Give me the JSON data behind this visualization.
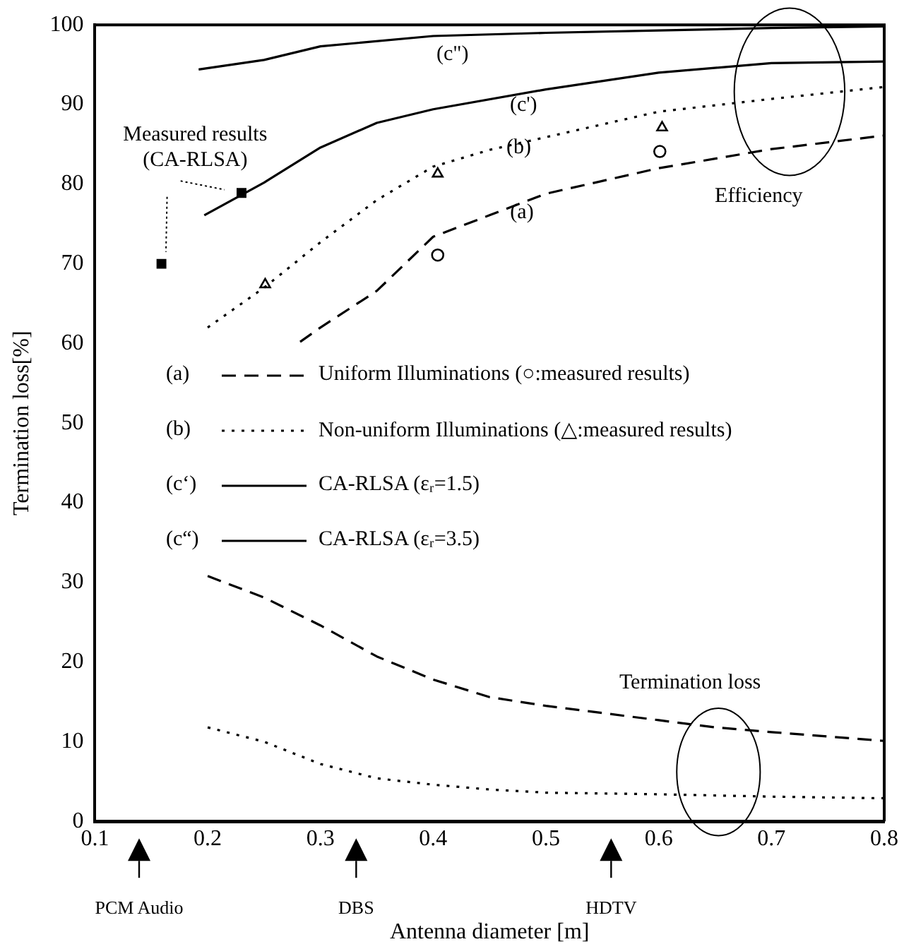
{
  "chart_data": {
    "type": "line",
    "xlabel": "Antenna diameter [m]",
    "ylabel": "Termination loss[%]",
    "xlim": [
      0.1,
      0.8
    ],
    "xticks": [
      0.1,
      0.2,
      0.3,
      0.4,
      0.5,
      0.6,
      0.7,
      0.8
    ],
    "ylim": [
      0,
      100
    ],
    "yticks": [
      0,
      10,
      20,
      30,
      40,
      50,
      60,
      70,
      80,
      90,
      100
    ],
    "grid": false,
    "legend": "left",
    "series": [
      {
        "name": "Uniform Illuminations (○:measured results)",
        "color": "#000000",
        "line_style": "dashed",
        "marker": "none",
        "x": [
          0.282,
          0.3,
          0.35,
          0.4,
          0.45,
          0.5,
          0.6,
          0.7,
          0.8
        ],
        "values": [
          60.2,
          62,
          66.6,
          73.4,
          76.1,
          78.8,
          82,
          84.4,
          86.1
        ]
      },
      {
        "name": "Non-uniform Illuminations (△:measured results)",
        "color": "#000000",
        "line_style": "dotted",
        "marker": "none",
        "x": [
          0.2,
          0.25,
          0.3,
          0.35,
          0.4,
          0.45,
          0.5,
          0.6,
          0.7,
          0.8
        ],
        "values": [
          62,
          67,
          72.7,
          78,
          82.2,
          84.3,
          85.9,
          89.1,
          90.7,
          92.2
        ]
      },
      {
        "name": "CA-RLSA (εᵣ=1.5)",
        "color": "#000000",
        "line_style": "solid",
        "marker": "none",
        "x": [
          0.197,
          0.25,
          0.3,
          0.35,
          0.4,
          0.5,
          0.6,
          0.7,
          0.8
        ],
        "values": [
          76.1,
          80.2,
          84.6,
          87.7,
          89.4,
          91.9,
          94,
          95.2,
          95.4
        ]
      },
      {
        "name": "CA-RLSA (εᵣ=3.5)",
        "color": "#000000",
        "line_style": "solid",
        "marker": "none",
        "x": [
          0.192,
          0.25,
          0.3,
          0.4,
          0.5,
          0.6,
          0.7,
          0.8
        ],
        "values": [
          94.4,
          95.6,
          97.3,
          98.6,
          99,
          99.3,
          99.6,
          99.8
        ]
      },
      {
        "color": "#000000",
        "line_style": "dashed",
        "marker": "none",
        "x": [
          0.2,
          0.25,
          0.3,
          0.35,
          0.4,
          0.45,
          0.5,
          0.55,
          0.6,
          0.65,
          0.7,
          0.8
        ],
        "values": [
          30.8,
          28.1,
          24.6,
          20.7,
          17.8,
          15.6,
          14.5,
          13.6,
          12.7,
          11.8,
          11.2,
          10.1
        ]
      },
      {
        "color": "#000000",
        "line_style": "dotted",
        "marker": "none",
        "x": [
          0.2,
          0.25,
          0.3,
          0.35,
          0.4,
          0.45,
          0.5,
          0.6,
          0.7,
          0.8
        ],
        "values": [
          11.8,
          10,
          7.2,
          5.4,
          4.6,
          4,
          3.6,
          3.4,
          3.1,
          2.9
        ]
      },
      {
        "type": "scatter",
        "color": "#000000",
        "marker": "circle",
        "x": [
          0.404,
          0.601
        ],
        "values": [
          71.1,
          84.1
        ]
      },
      {
        "type": "scatter",
        "color": "#000000",
        "marker": "triangle",
        "x": [
          0.251,
          0.404,
          0.603
        ],
        "values": [
          67.4,
          81.3,
          87.1
        ]
      },
      {
        "type": "scatter",
        "color": "#000000",
        "marker": "square",
        "x": [
          0.159,
          0.23
        ],
        "values": [
          70,
          78.9
        ]
      }
    ],
    "annotations": [
      "(c\")",
      "(c')",
      "(b)",
      "(a)",
      "Measured results (CA-RLSA)",
      "Efficiency",
      "Termination loss",
      "PCM Audio",
      "DBS",
      "HDTV",
      "(a)",
      "(b)",
      "(c‘)",
      "(c“)"
    ]
  }
}
